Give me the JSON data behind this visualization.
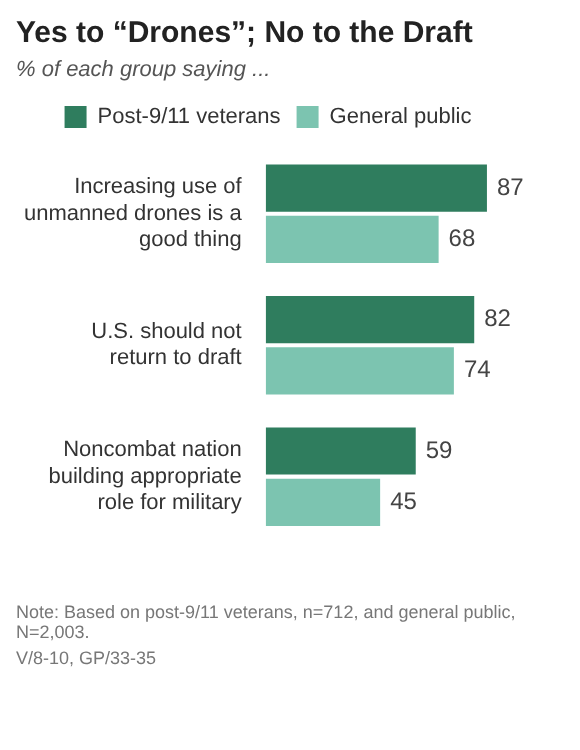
{
  "chart_data": {
    "type": "bar",
    "orientation": "horizontal",
    "title": "Yes to “Drones”; No to the Draft",
    "subtitle": "% of each group saying ...",
    "categories": [
      "Increasing use of unmanned drones is a good thing",
      "U.S. should not return to draft",
      "Noncombat nation building appropriate role for military"
    ],
    "series": [
      {
        "name": "Post-9/11 veterans",
        "color": "#2f7d5e",
        "values": [
          87,
          82,
          59
        ]
      },
      {
        "name": "General public",
        "color": "#7cc4b0",
        "values": [
          68,
          74,
          45
        ]
      }
    ],
    "data_labels": true,
    "legend": "top",
    "tick_labels": "y",
    "annotations": [
      "Note: Based on post-9/11 veterans, n=712, and general public, N=2,003.",
      "V/8-10, GP/33-35"
    ]
  }
}
